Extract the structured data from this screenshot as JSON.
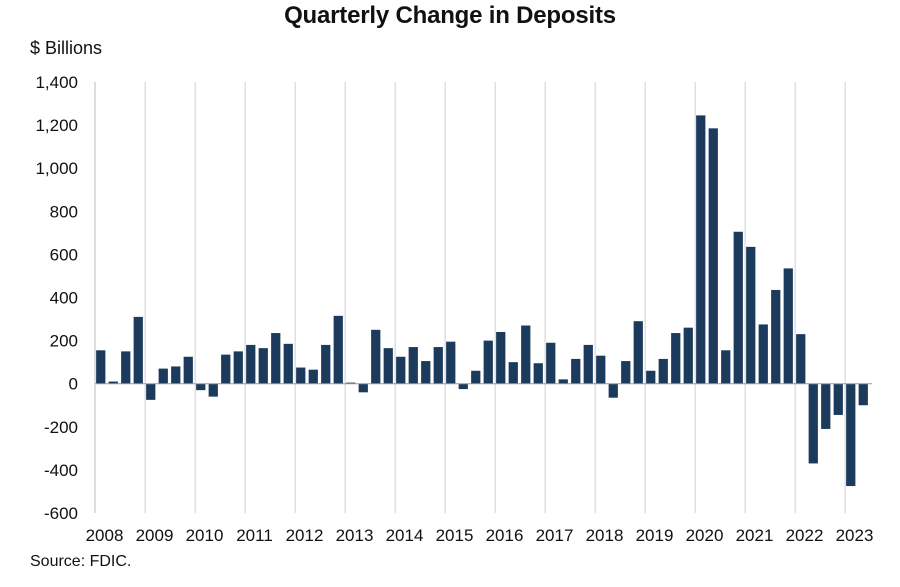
{
  "chart_data": {
    "type": "bar",
    "title": "Quarterly Change in Deposits",
    "ylabel": "$ Billions",
    "source": "Source: FDIC.",
    "ylim": [
      -600,
      1400
    ],
    "y_ticks": [
      "1,400",
      "1,200",
      "1,000",
      "800",
      "600",
      "400",
      "200",
      "0",
      "-200",
      "-400",
      "-600"
    ],
    "y_tick_values": [
      1400,
      1200,
      1000,
      800,
      600,
      400,
      200,
      0,
      -200,
      -400,
      -600
    ],
    "x_tick_labels": [
      "2008",
      "2009",
      "2010",
      "2011",
      "2012",
      "2013",
      "2014",
      "2015",
      "2016",
      "2017",
      "2018",
      "2019",
      "2020",
      "2021",
      "2022",
      "2023"
    ],
    "grid": "vertical lines at year boundaries",
    "bar_color": "#1b3a5c",
    "categories": [
      "2008 Q1",
      "2008 Q2",
      "2008 Q3",
      "2008 Q4",
      "2009 Q1",
      "2009 Q2",
      "2009 Q3",
      "2009 Q4",
      "2010 Q1",
      "2010 Q2",
      "2010 Q3",
      "2010 Q4",
      "2011 Q1",
      "2011 Q2",
      "2011 Q3",
      "2011 Q4",
      "2012 Q1",
      "2012 Q2",
      "2012 Q3",
      "2012 Q4",
      "2013 Q1",
      "2013 Q2",
      "2013 Q3",
      "2013 Q4",
      "2014 Q1",
      "2014 Q2",
      "2014 Q3",
      "2014 Q4",
      "2015 Q1",
      "2015 Q2",
      "2015 Q3",
      "2015 Q4",
      "2016 Q1",
      "2016 Q2",
      "2016 Q3",
      "2016 Q4",
      "2017 Q1",
      "2017 Q2",
      "2017 Q3",
      "2017 Q4",
      "2018 Q1",
      "2018 Q2",
      "2018 Q3",
      "2018 Q4",
      "2019 Q1",
      "2019 Q2",
      "2019 Q3",
      "2019 Q4",
      "2020 Q1",
      "2020 Q2",
      "2020 Q3",
      "2020 Q4",
      "2021 Q1",
      "2021 Q2",
      "2021 Q3",
      "2021 Q4",
      "2022 Q1",
      "2022 Q2",
      "2022 Q3",
      "2022 Q4",
      "2023 Q1",
      "2023 Q2"
    ],
    "values": [
      155,
      10,
      150,
      310,
      -75,
      70,
      80,
      125,
      -30,
      -60,
      135,
      150,
      180,
      165,
      235,
      185,
      75,
      65,
      180,
      315,
      5,
      -40,
      250,
      165,
      125,
      170,
      105,
      170,
      195,
      -25,
      60,
      200,
      240,
      100,
      270,
      95,
      190,
      20,
      115,
      180,
      130,
      -65,
      105,
      290,
      60,
      115,
      235,
      260,
      1245,
      1185,
      155,
      705,
      635,
      275,
      435,
      535,
      230,
      -370,
      -210,
      -145,
      -475,
      -100
    ]
  }
}
